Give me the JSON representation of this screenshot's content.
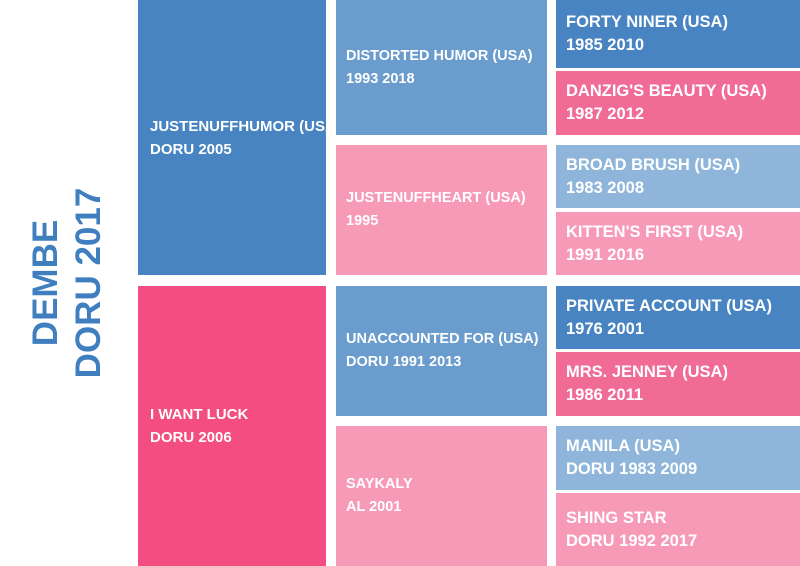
{
  "colors": {
    "male_dark": "#4884c1",
    "male_mid": "#6a9ccd",
    "male_light": "#8fb6da",
    "female_dark": "#f34d82",
    "female_mid": "#f06b96",
    "female_light": "#f79ab8",
    "subject_text": "#3f7fbf"
  },
  "subject": {
    "name": "DEMBE",
    "info": "DORU 2017"
  },
  "sire": {
    "name": "JUSTENUFFHUMOR (USA)",
    "info": "DORU 2005"
  },
  "dam": {
    "name": "I WANT LUCK",
    "info": "DORU 2006"
  },
  "grandparents": [
    {
      "name": "DISTORTED HUMOR (USA)",
      "info": "1993 2018"
    },
    {
      "name": "JUSTENUFFHEART (USA)",
      "info": "1995"
    },
    {
      "name": "UNACCOUNTED FOR (USA)",
      "info": "DORU 1991 2013"
    },
    {
      "name": "SAYKALY",
      "info": "AL 2001"
    }
  ],
  "great_grandparents": [
    {
      "name": "FORTY NINER (USA)",
      "info": "1985 2010"
    },
    {
      "name": "DANZIG'S BEAUTY (USA)",
      "info": "1987 2012"
    },
    {
      "name": "BROAD BRUSH (USA)",
      "info": "1983 2008"
    },
    {
      "name": "KITTEN'S FIRST (USA)",
      "info": "1991 2016"
    },
    {
      "name": "PRIVATE ACCOUNT (USA)",
      "info": "1976 2001"
    },
    {
      "name": "MRS. JENNEY (USA)",
      "info": "1986 2011"
    },
    {
      "name": "MANILA (USA)",
      "info": "DORU 1983 2009"
    },
    {
      "name": "SHING STAR",
      "info": "DORU 1992 2017"
    }
  ]
}
